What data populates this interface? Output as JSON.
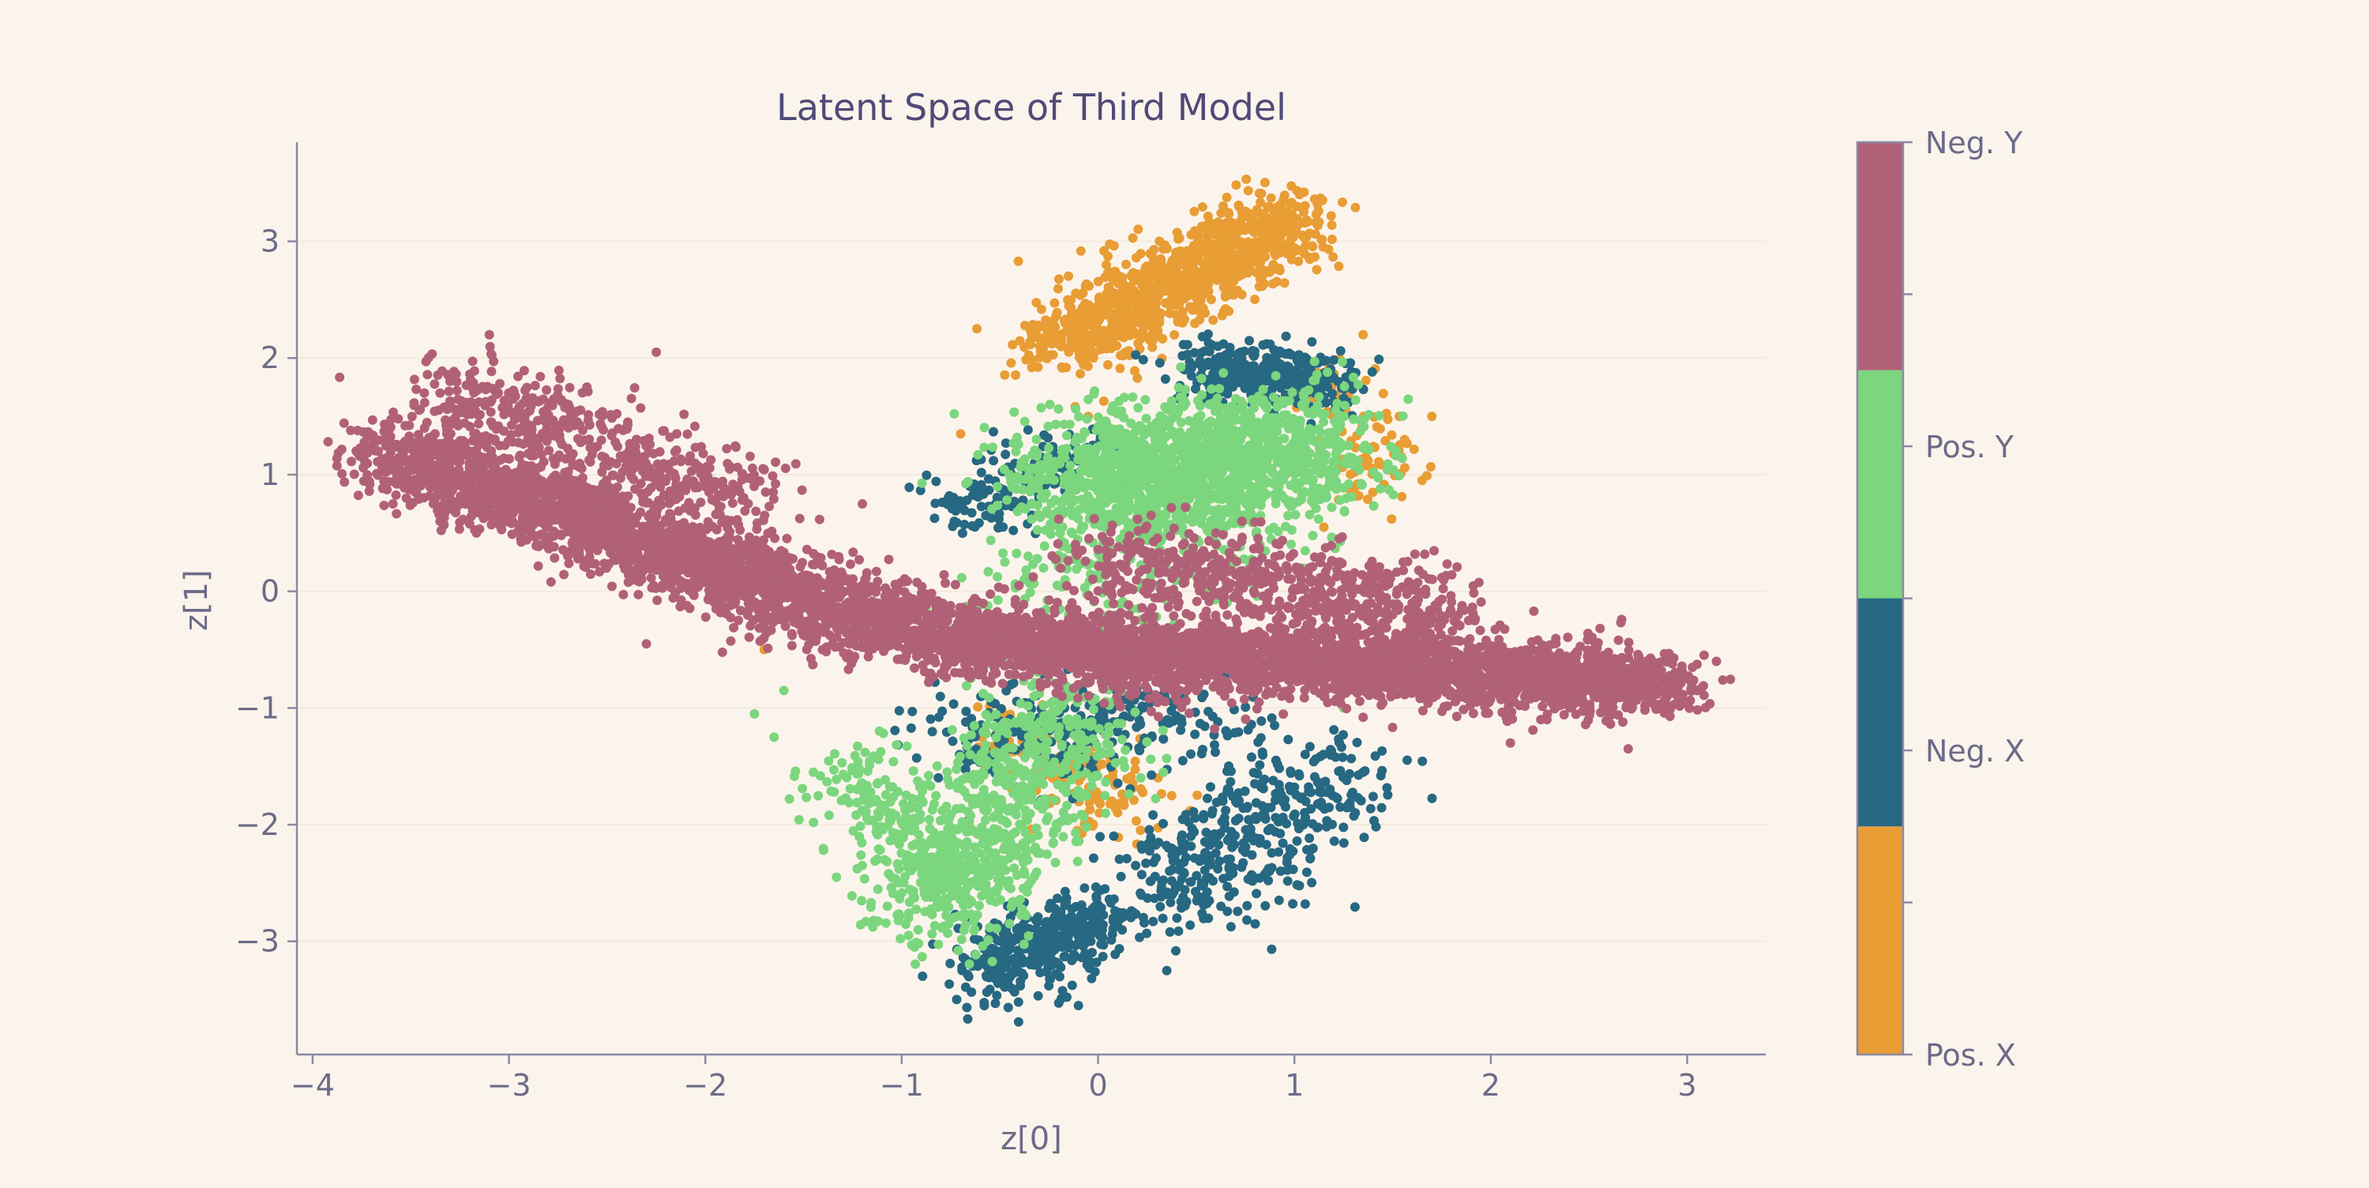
{
  "colors": {
    "background": "#fbf4ec",
    "axis": "#8a8aa0",
    "text": "#6b6b88",
    "title": "#4f4a78",
    "grid": "#f3e9dc"
  },
  "chart_data": {
    "type": "scatter",
    "title": "Latent Space of Third Model",
    "xlabel": "z[0]",
    "ylabel": "z[1]",
    "xlim": [
      -4.08,
      3.4
    ],
    "ylim": [
      -3.97,
      3.85
    ],
    "x_ticks": [
      -4,
      -3,
      -2,
      -1,
      0,
      1,
      2,
      3
    ],
    "y_ticks": [
      -3,
      -2,
      -1,
      0,
      1,
      2,
      3
    ],
    "x_tick_labels": [
      "−4",
      "−3",
      "−2",
      "−1",
      "0",
      "1",
      "2",
      "3"
    ],
    "y_tick_labels": [
      "−3",
      "−2",
      "−1",
      "0",
      "1",
      "2",
      "3"
    ],
    "grid": "horizontal",
    "legend": "colorbar-right",
    "colorbar": {
      "categories": [
        "Pos. X",
        "Neg. X",
        "Pos. Y",
        "Neg. Y"
      ],
      "labels_shown": [
        "Pos. X",
        "Neg. X",
        "Pos. Y",
        "Neg. Y"
      ],
      "colors": [
        "#e89d35",
        "#276882",
        "#7bd67e",
        "#b16177"
      ]
    },
    "series": [
      {
        "category": "Pos. X",
        "color": "#e89d35",
        "clusters": [
          {
            "n": 1000,
            "x0": -0.2,
            "y0": 2.1,
            "x1": 1.0,
            "y1": 3.2,
            "spread": 0.16
          },
          {
            "n": 90,
            "x0": 1.1,
            "y0": 1.9,
            "x1": 1.5,
            "y1": 0.8,
            "spread": 0.12
          },
          {
            "n": 140,
            "x0": -0.45,
            "y0": -1.2,
            "x1": 0.2,
            "y1": -1.9,
            "spread": 0.15
          }
        ],
        "points": [
          [
            -0.25,
            2.25
          ],
          [
            -0.05,
            1.5
          ],
          [
            0.4,
            2.6
          ],
          [
            1.35,
            2.2
          ],
          [
            1.7,
            1.5
          ],
          [
            1.65,
            0.95
          ],
          [
            1.15,
            0.55
          ],
          [
            -0.7,
            1.35
          ],
          [
            -1.7,
            -0.5
          ],
          [
            0.6,
            -2.35
          ]
        ]
      },
      {
        "category": "Neg. X",
        "color": "#276882",
        "clusters": [
          {
            "n": 320,
            "x0": 0.5,
            "y0": 1.9,
            "x1": 1.2,
            "y1": 1.8,
            "spread": 0.13
          },
          {
            "n": 420,
            "x0": 0.25,
            "y0": -2.7,
            "x1": 1.2,
            "y1": -1.5,
            "spread": 0.22
          },
          {
            "n": 380,
            "x0": -0.55,
            "y0": -3.3,
            "x1": -0.05,
            "y1": -2.8,
            "spread": 0.16
          },
          {
            "n": 260,
            "x0": -0.75,
            "y0": -1.3,
            "x1": 0.6,
            "y1": -1.0,
            "spread": 0.22
          },
          {
            "n": 160,
            "x0": -0.7,
            "y0": 0.7,
            "x1": -0.1,
            "y1": 1.2,
            "spread": 0.13
          }
        ],
        "points": [
          [
            -0.6,
            0.85
          ],
          [
            -0.1,
            -3.55
          ],
          [
            0.8,
            -2.85
          ],
          [
            1.35,
            -1.55
          ],
          [
            0.35,
            -3.25
          ],
          [
            1.05,
            -0.45
          ]
        ]
      },
      {
        "category": "Pos. Y",
        "color": "#7bd67e",
        "clusters": [
          {
            "n": 1600,
            "x0": -0.1,
            "y0": 0.9,
            "x1": 1.05,
            "y1": 1.25,
            "spread": 0.28
          },
          {
            "n": 700,
            "x0": -0.85,
            "y0": -2.8,
            "x1": -0.1,
            "y1": -1.0,
            "spread": 0.22
          },
          {
            "n": 240,
            "x0": -1.2,
            "y0": -1.5,
            "x1": -0.7,
            "y1": -2.6,
            "spread": 0.18
          },
          {
            "n": 220,
            "x0": -0.55,
            "y0": -0.2,
            "x1": 0.9,
            "y1": 0.6,
            "spread": 0.25
          }
        ],
        "points": [
          [
            -1.75,
            -1.05
          ],
          [
            -1.6,
            -0.85
          ],
          [
            -1.45,
            -1.55
          ],
          [
            -1.65,
            -1.25
          ],
          [
            1.25,
            -1.0
          ]
        ]
      },
      {
        "category": "Neg. Y",
        "color": "#b16177",
        "clusters": [
          {
            "n": 2400,
            "x0": -3.6,
            "y0": 1.2,
            "x1": -1.0,
            "y1": -0.35,
            "spread": 0.17
          },
          {
            "n": 500,
            "x0": -3.3,
            "y0": 1.75,
            "x1": -1.8,
            "y1": 0.75,
            "spread": 0.18
          },
          {
            "n": 3200,
            "x0": -0.9,
            "y0": -0.4,
            "x1": 2.9,
            "y1": -0.8,
            "spread": 0.15
          },
          {
            "n": 600,
            "x0": 0.0,
            "y0": 0.3,
            "x1": 1.8,
            "y1": -0.15,
            "spread": 0.17
          },
          {
            "n": 350,
            "x0": -1.0,
            "y0": -0.15,
            "x1": 0.5,
            "y1": -0.75,
            "spread": 0.15
          }
        ],
        "points": [
          [
            -3.1,
            2.2
          ],
          [
            -2.25,
            2.05
          ],
          [
            -1.2,
            0.75
          ],
          [
            -0.2,
            0.62
          ],
          [
            0.6,
            0.5
          ],
          [
            1.5,
            -0.2
          ],
          [
            2.7,
            -1.35
          ],
          [
            3.05,
            -0.85
          ],
          [
            2.1,
            -1.3
          ],
          [
            -2.3,
            -0.45
          ]
        ]
      }
    ]
  }
}
